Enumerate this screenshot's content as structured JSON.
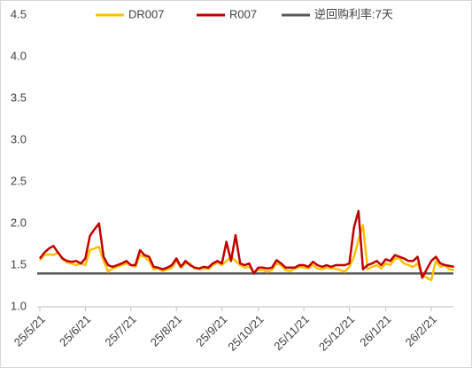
{
  "chart_data": {
    "type": "line",
    "categories": [
      "25/5/21",
      null,
      null,
      null,
      null,
      null,
      null,
      null,
      null,
      null,
      "25/6/21",
      null,
      null,
      null,
      null,
      null,
      null,
      null,
      null,
      null,
      "25/7/21",
      null,
      null,
      null,
      null,
      null,
      null,
      null,
      null,
      null,
      "25/8/21",
      null,
      null,
      null,
      null,
      null,
      null,
      null,
      null,
      null,
      "25/9/21",
      null,
      null,
      null,
      null,
      null,
      null,
      null,
      "25/10/21",
      null,
      null,
      null,
      null,
      null,
      null,
      null,
      null,
      null,
      "25/11/21",
      null,
      null,
      null,
      null,
      null,
      null,
      null,
      null,
      null,
      "25/12/21",
      null,
      null,
      null,
      null,
      null,
      null,
      null,
      "26/1/21",
      null,
      null,
      null,
      null,
      null,
      null,
      null,
      null,
      null,
      "26/2/21",
      null,
      null,
      null,
      null,
      null
    ],
    "series": [
      {
        "name": "DR007",
        "color": "#ffc000",
        "values": [
          1.56,
          1.62,
          1.63,
          1.62,
          1.65,
          1.57,
          1.53,
          1.52,
          1.5,
          1.52,
          1.5,
          1.68,
          1.7,
          1.72,
          1.55,
          1.42,
          1.46,
          1.48,
          1.5,
          1.52,
          1.5,
          1.48,
          1.62,
          1.6,
          1.55,
          1.45,
          1.46,
          1.43,
          1.45,
          1.47,
          1.55,
          1.47,
          1.52,
          1.52,
          1.46,
          1.45,
          1.46,
          1.45,
          1.5,
          1.53,
          1.5,
          1.55,
          1.6,
          1.55,
          1.5,
          1.47,
          1.48,
          1.42,
          1.44,
          1.44,
          1.42,
          1.44,
          1.52,
          1.5,
          1.44,
          1.43,
          1.46,
          1.48,
          1.47,
          1.46,
          1.5,
          1.46,
          1.45,
          1.47,
          1.46,
          1.46,
          1.44,
          1.42,
          1.48,
          1.6,
          1.8,
          1.98,
          1.45,
          1.48,
          1.5,
          1.46,
          1.52,
          1.5,
          1.58,
          1.58,
          1.52,
          1.5,
          1.48,
          1.52,
          1.38,
          1.35,
          1.32,
          1.55,
          1.48,
          1.5,
          1.45,
          1.44
        ]
      },
      {
        "name": "R007",
        "color": "#c00000",
        "values": [
          1.58,
          1.65,
          1.7,
          1.73,
          1.65,
          1.58,
          1.55,
          1.54,
          1.55,
          1.52,
          1.58,
          1.85,
          1.93,
          2.0,
          1.6,
          1.5,
          1.48,
          1.5,
          1.52,
          1.55,
          1.5,
          1.5,
          1.68,
          1.62,
          1.6,
          1.48,
          1.47,
          1.45,
          1.47,
          1.5,
          1.58,
          1.48,
          1.55,
          1.5,
          1.47,
          1.46,
          1.48,
          1.47,
          1.52,
          1.55,
          1.52,
          1.78,
          1.55,
          1.86,
          1.52,
          1.5,
          1.52,
          1.4,
          1.47,
          1.47,
          1.46,
          1.47,
          1.56,
          1.52,
          1.47,
          1.47,
          1.47,
          1.5,
          1.5,
          1.48,
          1.54,
          1.5,
          1.48,
          1.5,
          1.48,
          1.5,
          1.5,
          1.5,
          1.52,
          1.95,
          2.15,
          1.45,
          1.5,
          1.52,
          1.55,
          1.5,
          1.57,
          1.55,
          1.62,
          1.6,
          1.58,
          1.55,
          1.55,
          1.6,
          1.35,
          1.45,
          1.55,
          1.6,
          1.52,
          1.5,
          1.49,
          1.48
        ]
      }
    ],
    "reference_line": {
      "name": "逆回购利率:7天",
      "value": 1.4,
      "color": "#595959"
    },
    "ylim": [
      1.0,
      4.5
    ],
    "yticks": [
      {
        "value": 1.0,
        "label": "1.0"
      },
      1.5,
      {
        "value": 2.0,
        "label": "2.0"
      },
      2.5,
      {
        "value": 3.0,
        "label": "3.0"
      },
      3.5,
      {
        "value": 4.0,
        "label": "4.0"
      },
      4.5
    ],
    "legend": "top",
    "grid": false
  }
}
